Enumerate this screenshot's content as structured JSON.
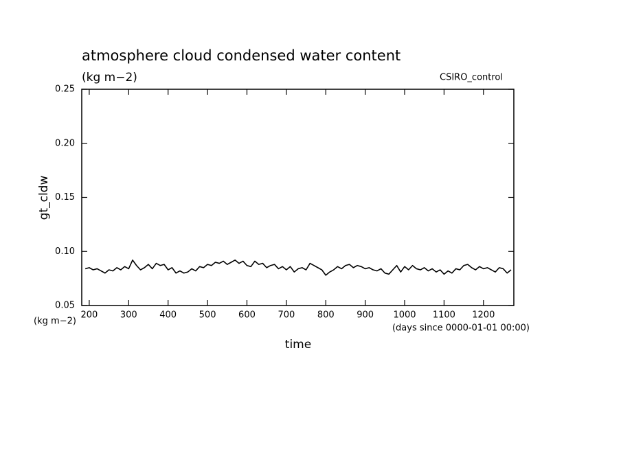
{
  "chart_data": {
    "type": "line",
    "title": "atmosphere cloud condensed water content",
    "subtitle": "(kg m−2)",
    "annotation": "CSIRO_control",
    "y_label": "gt_cldw",
    "y_units": "(kg m−2)",
    "x_label": "time",
    "x_units": "(days since 0000-01-01 00:00)",
    "x": [
      190,
      200,
      210,
      220,
      230,
      240,
      250,
      260,
      270,
      280,
      290,
      300,
      310,
      320,
      330,
      340,
      350,
      360,
      370,
      380,
      390,
      400,
      410,
      420,
      430,
      440,
      450,
      460,
      470,
      480,
      490,
      500,
      510,
      520,
      530,
      540,
      550,
      560,
      570,
      580,
      590,
      600,
      610,
      620,
      630,
      640,
      650,
      660,
      670,
      680,
      690,
      700,
      710,
      720,
      730,
      740,
      750,
      760,
      770,
      780,
      790,
      800,
      810,
      820,
      830,
      840,
      850,
      860,
      870,
      880,
      890,
      900,
      910,
      920,
      930,
      940,
      950,
      960,
      970,
      980,
      990,
      1000,
      1010,
      1020,
      1030,
      1040,
      1050,
      1060,
      1070,
      1080,
      1090,
      1100,
      1110,
      1120,
      1130,
      1140,
      1150,
      1160,
      1170,
      1180,
      1190,
      1200,
      1210,
      1220,
      1230,
      1240,
      1250,
      1260,
      1270
    ],
    "series": [
      {
        "color": "#000000",
        "values": [
          0.084,
          0.085,
          0.083,
          0.084,
          0.082,
          0.08,
          0.083,
          0.082,
          0.085,
          0.083,
          0.086,
          0.084,
          0.092,
          0.087,
          0.083,
          0.085,
          0.088,
          0.084,
          0.089,
          0.087,
          0.088,
          0.083,
          0.085,
          0.08,
          0.082,
          0.08,
          0.081,
          0.084,
          0.082,
          0.086,
          0.085,
          0.088,
          0.087,
          0.09,
          0.089,
          0.091,
          0.088,
          0.09,
          0.092,
          0.089,
          0.091,
          0.087,
          0.086,
          0.091,
          0.088,
          0.089,
          0.085,
          0.087,
          0.088,
          0.084,
          0.086,
          0.083,
          0.086,
          0.081,
          0.084,
          0.085,
          0.083,
          0.089,
          0.087,
          0.085,
          0.083,
          0.078,
          0.081,
          0.083,
          0.086,
          0.084,
          0.087,
          0.088,
          0.085,
          0.087,
          0.086,
          0.084,
          0.085,
          0.083,
          0.082,
          0.084,
          0.08,
          0.079,
          0.083,
          0.087,
          0.081,
          0.086,
          0.083,
          0.087,
          0.084,
          0.083,
          0.085,
          0.082,
          0.084,
          0.081,
          0.083,
          0.079,
          0.082,
          0.08,
          0.084,
          0.083,
          0.087,
          0.088,
          0.085,
          0.083,
          0.086,
          0.084,
          0.085,
          0.083,
          0.081,
          0.085,
          0.084,
          0.08,
          0.083
        ]
      }
    ],
    "xlim": [
      181,
      1277
    ],
    "xticks": [
      200,
      300,
      400,
      500,
      600,
      700,
      800,
      900,
      1000,
      1100,
      1200
    ],
    "ylim": [
      0.05,
      0.25
    ],
    "yticks": [
      0.05,
      {
        "value": 0.1,
        "label": "0.10"
      },
      0.15,
      {
        "value": 0.2,
        "label": "0.20"
      },
      0.25
    ]
  }
}
